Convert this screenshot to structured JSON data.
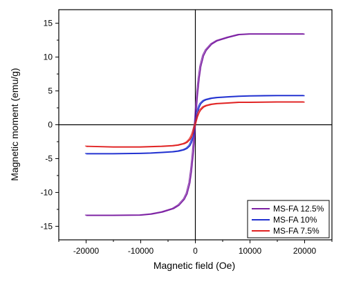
{
  "chart_data": {
    "type": "line",
    "title": "",
    "xlabel": "Magnetic field (Oe)",
    "ylabel": "Magnetic moment (emu/g)",
    "xlim": [
      -25000,
      25000
    ],
    "ylim": [
      -17,
      17
    ],
    "xticks": [
      -20000,
      -10000,
      0,
      10000,
      20000
    ],
    "yticks": [
      -15,
      -10,
      -5,
      0,
      5,
      10,
      15
    ],
    "xtick_labels": [
      "-20000",
      "-10000",
      "0",
      "10000",
      "20000"
    ],
    "ytick_labels": [
      "-15",
      "-10",
      "-5",
      "0",
      "5",
      "10",
      "15"
    ],
    "grid": false,
    "legend_position": "bottom-right",
    "series": [
      {
        "name": "MS-FA 12.5%",
        "color": "#7b1fa2",
        "x": [
          -20000,
          -15000,
          -10000,
          -8000,
          -6000,
          -4000,
          -3000,
          -2000,
          -1500,
          -1000,
          -700,
          -400,
          -200,
          0,
          200,
          400,
          700,
          1000,
          1500,
          2000,
          3000,
          4000,
          6000,
          8000,
          10000,
          15000,
          20000
        ],
        "y": [
          -13.4,
          -13.4,
          -13.35,
          -13.2,
          -12.9,
          -12.4,
          -11.9,
          -11.0,
          -10.2,
          -8.6,
          -6.8,
          -4.5,
          -2.5,
          0,
          2.5,
          4.5,
          6.8,
          8.6,
          10.2,
          11.0,
          11.9,
          12.4,
          12.9,
          13.3,
          13.4,
          13.4,
          13.4
        ]
      },
      {
        "name": "MS-FA 10%",
        "color": "#1f2fd0",
        "x": [
          -20000,
          -15000,
          -10000,
          -8000,
          -6000,
          -4000,
          -3000,
          -2000,
          -1500,
          -1000,
          -700,
          -400,
          -200,
          0,
          200,
          400,
          700,
          1000,
          1500,
          2000,
          3000,
          4000,
          6000,
          8000,
          10000,
          15000,
          20000
        ],
        "y": [
          -4.3,
          -4.3,
          -4.25,
          -4.2,
          -4.1,
          -4.0,
          -3.9,
          -3.7,
          -3.5,
          -3.1,
          -2.6,
          -1.8,
          -1.0,
          0,
          1.0,
          1.8,
          2.6,
          3.1,
          3.5,
          3.7,
          3.9,
          4.0,
          4.1,
          4.2,
          4.25,
          4.3,
          4.3
        ]
      },
      {
        "name": "MS-FA 7.5%",
        "color": "#e02020",
        "x": [
          -20000,
          -15000,
          -10000,
          -8000,
          -6000,
          -4000,
          -3000,
          -2000,
          -1500,
          -1000,
          -700,
          -400,
          -200,
          0,
          200,
          400,
          700,
          1000,
          1500,
          2000,
          3000,
          4000,
          6000,
          8000,
          10000,
          15000,
          20000
        ],
        "y": [
          -3.2,
          -3.3,
          -3.3,
          -3.25,
          -3.2,
          -3.1,
          -3.0,
          -2.8,
          -2.6,
          -2.2,
          -1.8,
          -1.2,
          -0.6,
          0,
          0.6,
          1.2,
          1.8,
          2.2,
          2.6,
          2.8,
          3.0,
          3.1,
          3.2,
          3.3,
          3.3,
          3.35,
          3.35
        ]
      }
    ]
  }
}
